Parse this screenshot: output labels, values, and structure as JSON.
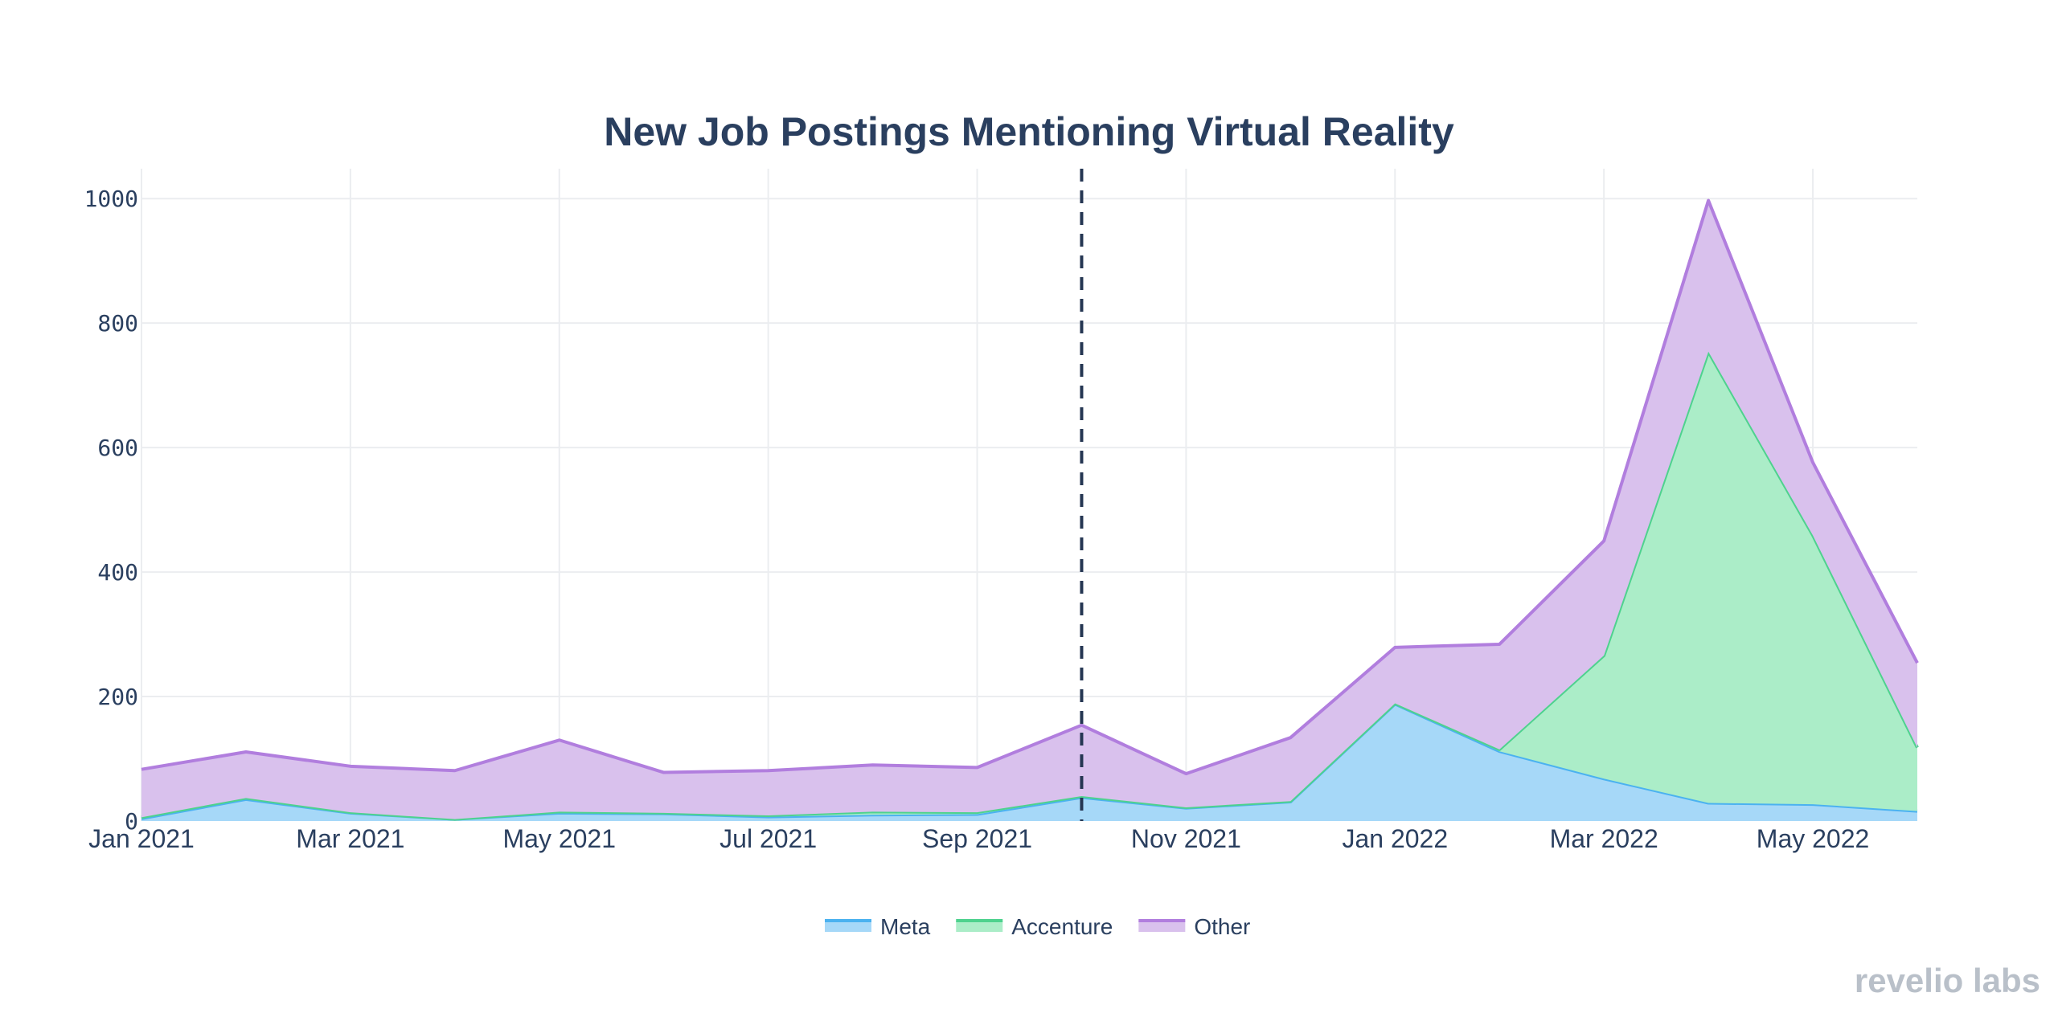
{
  "chart_data": {
    "type": "area",
    "stacked": true,
    "title": "New Job Postings Mentioning Virtual Reality",
    "xlabel": "",
    "ylabel": "",
    "x": [
      "2021-01",
      "2021-02",
      "2021-03",
      "2021-04",
      "2021-05",
      "2021-06",
      "2021-07",
      "2021-08",
      "2021-09",
      "2021-10",
      "2021-11",
      "2021-12",
      "2022-01",
      "2022-02",
      "2022-03",
      "2022-04",
      "2022-05",
      "2022-06"
    ],
    "x_tick_labels": [
      "Jan 2021",
      "Mar 2021",
      "May 2021",
      "Jul 2021",
      "Sep 2021",
      "Nov 2021",
      "Jan 2022",
      "Mar 2022",
      "May 2022"
    ],
    "x_tick_positions": [
      "2021-01",
      "2021-03",
      "2021-05",
      "2021-07",
      "2021-09",
      "2021-11",
      "2022-01",
      "2022-03",
      "2022-05"
    ],
    "y_tick_labels": [
      "0",
      "200",
      "400",
      "600",
      "800",
      "1000"
    ],
    "y_tick_values": [
      0,
      200,
      400,
      600,
      800,
      1000
    ],
    "ylim": [
      0,
      1048
    ],
    "grid": true,
    "legend_position": "bottom",
    "vertical_marker": {
      "x": "2021-10",
      "style": "dashed",
      "color": "#253652"
    },
    "series": [
      {
        "name": "Meta",
        "color": "#4bb2f0",
        "fill": "#a6d8f8",
        "values": [
          4,
          35,
          13,
          3,
          13,
          12,
          7,
          10,
          11,
          38,
          21,
          31,
          188,
          112,
          68,
          29,
          27,
          16
        ]
      },
      {
        "name": "Accenture",
        "color": "#4ed28e",
        "fill": "#abedc8",
        "values": [
          2,
          2,
          1,
          0,
          2,
          1,
          2,
          5,
          3,
          2,
          1,
          1,
          1,
          3,
          198,
          725,
          432,
          102
        ]
      },
      {
        "name": "Other",
        "color": "#b17ede",
        "fill": "#d9c1ed",
        "values": [
          77,
          74,
          74,
          78,
          115,
          65,
          72,
          75,
          72,
          114,
          54,
          102,
          90,
          169,
          184,
          243,
          117,
          136
        ]
      }
    ]
  },
  "watermark": "revelio labs"
}
